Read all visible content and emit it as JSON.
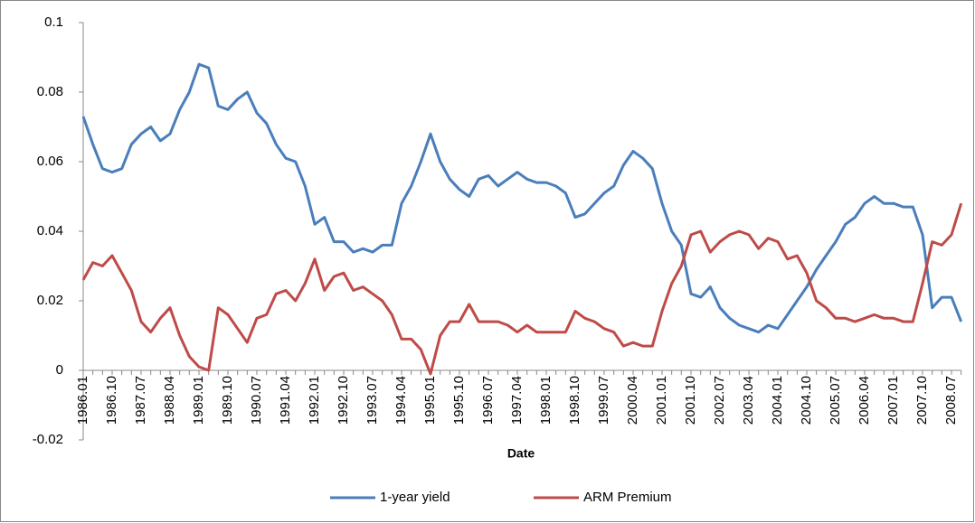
{
  "chart_data": {
    "type": "line",
    "x_label": "Date",
    "categories": [
      "1986.01",
      null,
      null,
      "1986.10",
      null,
      null,
      "1987.07",
      null,
      null,
      "1988.04",
      null,
      null,
      "1989.01",
      null,
      null,
      "1989.10",
      null,
      null,
      "1990.07",
      null,
      null,
      "1991.04",
      null,
      null,
      "1992.01",
      null,
      null,
      "1992.10",
      null,
      null,
      "1993.07",
      null,
      null,
      "1994.04",
      null,
      null,
      "1995.01",
      null,
      null,
      "1995.10",
      null,
      null,
      "1996.07",
      null,
      null,
      "1997.04",
      null,
      null,
      "1998.01",
      null,
      null,
      "1998.10",
      null,
      null,
      "1999.07",
      null,
      null,
      "2000.04",
      null,
      null,
      "2001.01",
      null,
      null,
      "2001.10",
      null,
      null,
      "2002.07",
      null,
      null,
      "2003.04",
      null,
      null,
      "2004.01",
      null,
      null,
      "2004.10",
      null,
      null,
      "2005.07",
      null,
      null,
      "2006.04",
      null,
      null,
      "2007.01",
      null,
      null,
      "2007.10",
      null,
      null,
      "2008.07",
      null
    ],
    "series": [
      {
        "name": "1-year yield",
        "color": "#4a7ebb",
        "values": [
          0.073,
          0.065,
          0.058,
          0.057,
          0.058,
          0.065,
          0.068,
          0.07,
          0.066,
          0.068,
          0.075,
          0.08,
          0.088,
          0.087,
          0.076,
          0.075,
          0.078,
          0.08,
          0.074,
          0.071,
          0.065,
          0.061,
          0.06,
          0.053,
          0.042,
          0.044,
          0.037,
          0.037,
          0.034,
          0.035,
          0.034,
          0.036,
          0.036,
          0.048,
          0.053,
          0.06,
          0.068,
          0.06,
          0.055,
          0.052,
          0.05,
          0.055,
          0.056,
          0.053,
          0.055,
          0.057,
          0.055,
          0.054,
          0.054,
          0.053,
          0.051,
          0.044,
          0.045,
          0.048,
          0.051,
          0.053,
          0.059,
          0.063,
          0.061,
          0.058,
          0.048,
          0.04,
          0.036,
          0.022,
          0.021,
          0.024,
          0.018,
          0.015,
          0.013,
          0.012,
          0.011,
          0.013,
          0.012,
          0.016,
          0.02,
          0.024,
          0.029,
          0.033,
          0.037,
          0.042,
          0.044,
          0.048,
          0.05,
          0.048,
          0.048,
          0.047,
          0.047,
          0.039,
          0.018,
          0.021,
          0.021,
          0.014
        ]
      },
      {
        "name": "ARM Premium",
        "color": "#be4b48",
        "values": [
          0.026,
          0.031,
          0.03,
          0.033,
          0.028,
          0.023,
          0.014,
          0.011,
          0.015,
          0.018,
          0.01,
          0.004,
          0.001,
          0.0,
          0.018,
          0.016,
          0.012,
          0.008,
          0.015,
          0.016,
          0.022,
          0.023,
          0.02,
          0.025,
          0.032,
          0.023,
          0.027,
          0.028,
          0.023,
          0.024,
          0.022,
          0.02,
          0.016,
          0.009,
          0.009,
          0.006,
          -0.001,
          0.01,
          0.014,
          0.014,
          0.019,
          0.014,
          0.014,
          0.014,
          0.013,
          0.011,
          0.013,
          0.011,
          0.011,
          0.011,
          0.011,
          0.017,
          0.015,
          0.014,
          0.012,
          0.011,
          0.007,
          0.008,
          0.007,
          0.007,
          0.017,
          0.025,
          0.03,
          0.039,
          0.04,
          0.034,
          0.037,
          0.039,
          0.04,
          0.039,
          0.035,
          0.038,
          0.037,
          0.032,
          0.033,
          0.028,
          0.02,
          0.018,
          0.015,
          0.015,
          0.014,
          0.015,
          0.016,
          0.015,
          0.015,
          0.014,
          0.014,
          0.025,
          0.037,
          0.036,
          0.039,
          0.048
        ]
      }
    ],
    "ylim": [
      -0.02,
      0.1
    ],
    "yticks": [
      -0.02,
      0,
      0.02,
      0.04,
      0.06,
      0.08,
      0.1
    ],
    "grid": false,
    "legend": "bottom"
  }
}
